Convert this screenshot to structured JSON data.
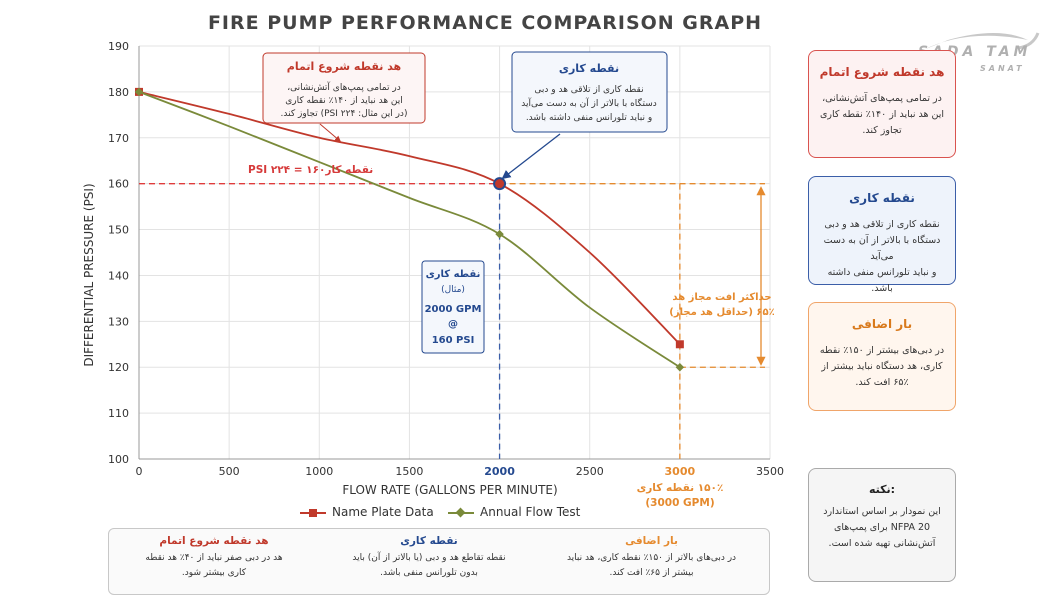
{
  "title": "FIRE PUMP PERFORMANCE COMPARISON  GRAPH",
  "logo": {
    "main": "SADA TAM",
    "sub": "SANAT"
  },
  "chart_data": {
    "type": "line",
    "xlabel": "FLOW RATE (GALLONS PER MINUTE)",
    "ylabel": "DIFFERENTIAL PRESSURE (PSI)",
    "xlim": [
      0,
      3500
    ],
    "ylim": [
      100,
      190
    ],
    "x_ticks": [
      "0",
      "500",
      "1000",
      "1500",
      "2000",
      "2500",
      "3000",
      "3500"
    ],
    "y_ticks": [
      "100",
      "110",
      "120",
      "130",
      "140",
      "150",
      "160",
      "170",
      "180",
      "190"
    ],
    "grid": true,
    "legend_position": "bottom-center",
    "series": [
      {
        "name": "Name Plate Data",
        "color": "#c0392b",
        "marker": "square",
        "x": [
          0,
          500,
          1000,
          1500,
          2000,
          2500,
          3000
        ],
        "y": [
          180,
          175.2,
          170,
          166,
          160,
          145,
          125
        ],
        "marker_x": [
          0,
          3000
        ],
        "marker_y": [
          180,
          125
        ]
      },
      {
        "name": "Annual Flow Test",
        "color": "#7a8a3a",
        "marker": "diamond",
        "x": [
          0,
          500,
          1000,
          1500,
          2000,
          2500,
          3000
        ],
        "y": [
          180,
          172.5,
          164.7,
          156.9,
          149,
          133,
          120
        ],
        "marker_x": [
          0,
          2000,
          3000
        ],
        "marker_y": [
          180,
          149,
          120
        ]
      }
    ],
    "rated_point": {
      "x": 2000,
      "y": 160
    },
    "annotations": {
      "rated_pressure_label": "نقطه کار۱۶۰ = ۲۲۴ PSI",
      "shutoff": {
        "title": "هد نقطه شروع اتمام",
        "lines": [
          "در تمامی پمپ‌های آتش‌نشانی،",
          "این هد نباید از ۱۴۰٪ نقطه کاری",
          "(در این مثال: ۲۲۴ PSI) تجاوز کند."
        ]
      },
      "rated_box": {
        "title": "نقطه کاری",
        "lines": [
          "نقطه کاری از تلاقی هد و دبی",
          "دستگاه با بالاتر از آن به دست می‌آید",
          "و  نباید تلورانس منفی داشته باشد."
        ]
      },
      "example": {
        "title": "نقطه کاری",
        "sub": "(مثال)",
        "flow": "2000 GPM",
        "at": "@",
        "pressure": "160 PSI"
      },
      "max_drop": {
        "line1": "حداکثر افت مجاز هد",
        "line2": "۶۵٪ (حداقل هد مجاز)"
      },
      "overload_flow": {
        "line1": "۱۵۰٪ نقطه کاری",
        "line2": "(3000 GPM)"
      }
    }
  },
  "cards": {
    "shutoff": {
      "title": "هد نقطه شروع اتمام",
      "body": [
        "در تمامی پمپ‌های آتش‌نشانی،",
        "این هد نباید از ۱۴۰٪ نقطه کاری",
        "تجاوز کند."
      ]
    },
    "rated": {
      "title": "نقطه کاری",
      "body": [
        "نقطه کاری از تلاقی هد و دبی",
        "دستگاه با بالاتر از آن به دست می‌آید",
        "و  نباید تلورانس منفی داشته باشد."
      ]
    },
    "overload": {
      "title": "بار اضافی",
      "body": [
        "در دبی‌های بیشتر از ۱۵۰٪ نقطه",
        "کاری، هد دستگاه نباید بیشتر از",
        "۶۵٪ افت کند."
      ]
    },
    "note": {
      "title": "نکته:",
      "body": [
        "این نمودار بر اساس استاندارد",
        "NFPA 20 برای پمپ‌های",
        "آتش‌نشانی تهیه شده است."
      ]
    }
  },
  "bottom": {
    "shutoff": {
      "title": "هد نقطه شروع اتمام",
      "body": [
        "هد در دبی صفر نباید از ۴۰٪ هد نقطه",
        "کاری بیشتر شود."
      ]
    },
    "rated": {
      "title": "نقطه کاری",
      "body": [
        "نقطه تقاطع هد و دبی (یا بالاتر از آن) باید",
        "بدون تلورانس منفی باشد."
      ]
    },
    "overload": {
      "title": "بار اضافی",
      "body": [
        "در دبی‌های بالاتر از ۱۵۰٪ نقطه کاری، هد نباید",
        "بیشتر از ۶۵٪ افت کند."
      ]
    }
  },
  "colors": {
    "red": "#c0392b",
    "olive": "#7a8a3a",
    "blue": "#24498f",
    "orange": "#e58a2e",
    "grid": "#e3e3e3"
  }
}
